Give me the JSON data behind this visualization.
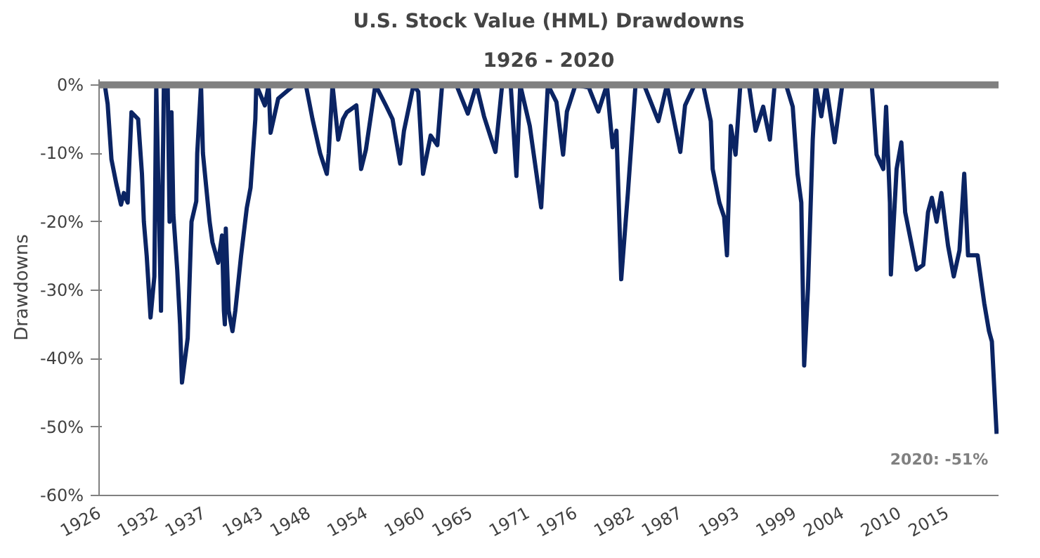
{
  "chart_data": {
    "type": "line",
    "title": "U.S. Stock Value (HML) Drawdowns",
    "subtitle": "1926 - 2020",
    "ylabel": "Drawdowns",
    "x": [
      1926.05,
      1926.6,
      1926.9,
      1927.3,
      1927.8,
      1928.3,
      1928.6,
      1929.0,
      1929.4,
      1930.1,
      1930.5,
      1930.7,
      1931.0,
      1931.4,
      1931.8,
      1932.0,
      1932.5,
      1932.8,
      1933.2,
      1933.4,
      1933.6,
      1933.8,
      1934.2,
      1934.5,
      1934.7,
      1935.3,
      1935.7,
      1936.2,
      1936.3,
      1936.7,
      1936.9,
      1937.6,
      1937.9,
      1938.5,
      1938.9,
      1939.1,
      1939.2,
      1939.3,
      1939.6,
      1940.0,
      1940.3,
      1940.9,
      1941.5,
      1941.9,
      1942.4,
      1942.5,
      1943.4,
      1943.8,
      1944.0,
      1944.8,
      1946.5,
      1947.7,
      1948.4,
      1949.2,
      1949.9,
      1950.1,
      1950.5,
      1951.1,
      1951.6,
      1952.0,
      1953.0,
      1953.5,
      1954.0,
      1955.0,
      1956.1,
      1956.8,
      1957.6,
      1958.0,
      1959.0,
      1959.5,
      1960.0,
      1960.8,
      1961.5,
      1962.0,
      1963.5,
      1964.7,
      1965.6,
      1966.4,
      1967.6,
      1968.3,
      1969.2,
      1969.8,
      1970.2,
      1971.2,
      1972.4,
      1973.1,
      1974.0,
      1974.7,
      1975.1,
      1976.0,
      1977.4,
      1978.4,
      1979.3,
      1979.9,
      1980.3,
      1980.8,
      1981.5,
      1982.3,
      1983.2,
      1984.7,
      1985.6,
      1987.0,
      1987.5,
      1988.5,
      1989.4,
      1990.2,
      1990.4,
      1991.1,
      1991.6,
      1991.9,
      1992.3,
      1992.8,
      1993.3,
      1994.2,
      1994.9,
      1995.7,
      1996.4,
      1996.9,
      1998.1,
      1998.8,
      1999.3,
      1999.7,
      2000.0,
      2000.4,
      2000.9,
      2001.2,
      2001.8,
      2002.3,
      2003.2,
      2004.0,
      2005.6,
      2007.1,
      2007.6,
      2008.3,
      2008.6,
      2009.0,
      2009.1,
      2009.7,
      2010.2,
      2010.6,
      2011.1,
      2011.8,
      2012.5,
      2013.0,
      2013.4,
      2013.9,
      2014.4,
      2015.1,
      2015.7,
      2016.3,
      2016.8,
      2017.2,
      2018.2,
      2018.9,
      2019.4,
      2019.7,
      2020.2
    ],
    "series": [
      {
        "color": "#0b2463",
        "values": [
          0,
          0,
          -2.8,
          -10.9,
          -14.4,
          -17.5,
          -15.8,
          -17.2,
          -4,
          -5,
          -13,
          -20,
          -25,
          -34,
          -28,
          0,
          -33,
          0,
          0,
          -20,
          -4,
          -19,
          -27,
          -35,
          -43.5,
          -37,
          -20,
          -17,
          -10,
          0,
          -10,
          -20,
          -23,
          -26,
          -22,
          -33,
          -35,
          -21,
          -33,
          -36,
          -33,
          -25,
          -18,
          -15,
          -5,
          0,
          -3,
          0,
          -7,
          -2,
          0,
          0,
          -5,
          -10,
          -13,
          -10,
          0,
          -8,
          -5,
          -4,
          -3,
          -12.3,
          -9.5,
          0,
          -3,
          -5,
          -11.5,
          -6.7,
          0,
          -1,
          -13,
          -7.4,
          -8.8,
          0,
          0,
          -4.2,
          0,
          -4.6,
          -9.8,
          0,
          0,
          -13.3,
          0,
          -6,
          -17.9,
          0,
          -2.5,
          -10.2,
          -3.9,
          0,
          -0.4,
          -3.9,
          0,
          -9.1,
          -6.7,
          -28.4,
          -15.8,
          0,
          0,
          -5.3,
          0,
          -9.8,
          -3,
          0,
          0,
          -5.3,
          -12.3,
          -17.2,
          -19.3,
          -24.9,
          -6,
          -10.2,
          0,
          0,
          -6.7,
          -3.2,
          -8,
          0,
          0,
          -3.2,
          -13,
          -17.2,
          -41,
          -29.8,
          -8,
          0,
          -4.6,
          0,
          -8.4,
          0,
          0,
          0,
          -10.2,
          -12.3,
          -3.2,
          -17.2,
          -27.7,
          -12.3,
          -8.4,
          -18.6,
          -22.1,
          -27,
          -26.3,
          -18.6,
          -16.5,
          -20,
          -15.8,
          -23.5,
          -28,
          -24.2,
          -13,
          -24.9,
          -24.9,
          -31.9,
          -36,
          -37.5,
          -51
        ]
      }
    ],
    "xlim": [
      1926,
      2020.4
    ],
    "ylim": [
      -60,
      0.8
    ],
    "xticks": [
      1926,
      1932,
      1937,
      1943,
      1948,
      1954,
      1960,
      1965,
      1971,
      1976,
      1982,
      1987,
      1993,
      1999,
      2004,
      2010,
      2015
    ],
    "yticks": [
      {
        "value": 0,
        "label": "0%"
      },
      {
        "value": -10,
        "label": "-10%"
      },
      {
        "value": -20,
        "label": "-20%"
      },
      {
        "value": -30,
        "label": "-30%"
      },
      {
        "value": -40,
        "label": "-40%"
      },
      {
        "value": -50,
        "label": "-50%"
      },
      {
        "value": -60,
        "label": "-60%"
      }
    ],
    "ref_lines": [
      {
        "axis": "y",
        "value": 0,
        "color": "#808080"
      }
    ],
    "annotations": [
      {
        "text": "2020: -51%",
        "x": 2020.2,
        "y": -51
      }
    ],
    "grid": false,
    "marker": "none",
    "line_style": "solid"
  }
}
